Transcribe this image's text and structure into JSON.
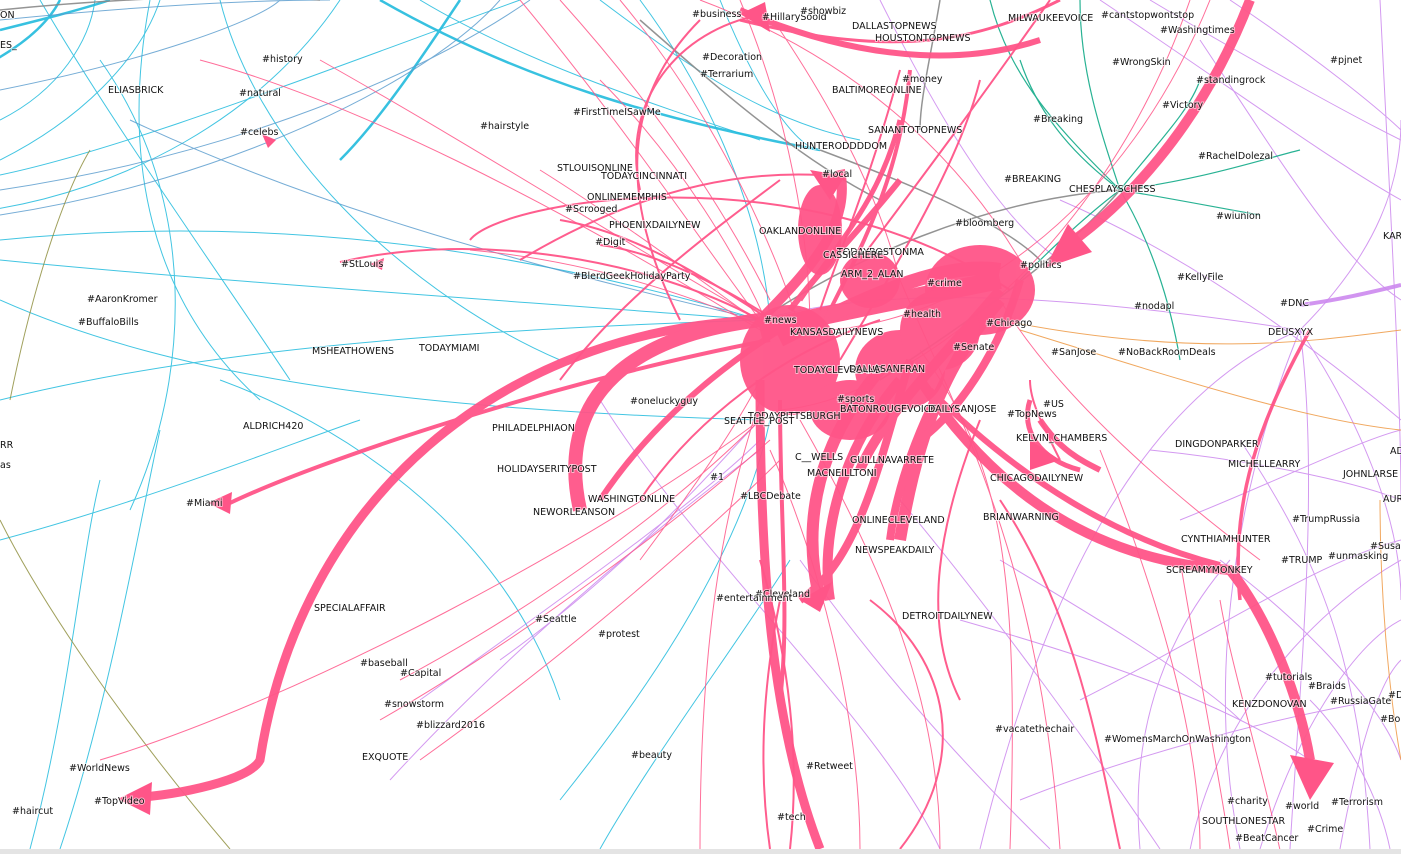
{
  "colors": {
    "pink": "#ff5588",
    "cyan": "#22bbdd",
    "blue": "#5599cc",
    "violet": "#cc88ee",
    "green": "#11aa88",
    "gray": "#888888",
    "orange": "#ee9944",
    "olive": "#888833",
    "label": "#111111"
  },
  "nodes": [
    {
      "label": "ON"
    },
    {
      "label": "ES_"
    },
    {
      "label": "ELIASBRICK"
    },
    {
      "label": "#history"
    },
    {
      "label": "#natural"
    },
    {
      "label": "#celebs"
    },
    {
      "label": "#hairstyle"
    },
    {
      "label": "#business"
    },
    {
      "label": "#HillarySoold"
    },
    {
      "label": "#showbiz"
    },
    {
      "label": "DALLASTOPNEWS"
    },
    {
      "label": "HOUSTONTOPNEWS"
    },
    {
      "label": "MILWAUKEEVOICE"
    },
    {
      "label": "#cantstopwontstop"
    },
    {
      "label": "#Washingtimes"
    },
    {
      "label": "#WrongSkin"
    },
    {
      "label": "#pjnet"
    },
    {
      "label": "#Decoration"
    },
    {
      "label": "#Terrarium"
    },
    {
      "label": "#money"
    },
    {
      "label": "BALTIMOREONLINE"
    },
    {
      "label": "#standingrock"
    },
    {
      "label": "#Victory"
    },
    {
      "label": "#FirstTimeISawMe"
    },
    {
      "label": "SANANTOTOPNEWS"
    },
    {
      "label": "#Breaking"
    },
    {
      "label": "HUNTERODDDDOM"
    },
    {
      "label": "#RachelDolezal"
    },
    {
      "label": "STLOUISONLINE"
    },
    {
      "label": "TODAYCINCINNATI"
    },
    {
      "label": "#local"
    },
    {
      "label": "#BREAKING"
    },
    {
      "label": "CHESPLAYSCHESS"
    },
    {
      "label": "ONLINEMEMPHIS"
    },
    {
      "label": "#Scrooged"
    },
    {
      "label": "#wiunion"
    },
    {
      "label": "PHOENIXDAILYNEW"
    },
    {
      "label": "#bloomberg"
    },
    {
      "label": "OAKLANDONLINE"
    },
    {
      "label": "KAR"
    },
    {
      "label": "#Digit"
    },
    {
      "label": "TODAYBOSTONMA"
    },
    {
      "label": "CASSICHERE"
    },
    {
      "label": "#politics"
    },
    {
      "label": "#StLouis"
    },
    {
      "label": "ARM_2_ALAN"
    },
    {
      "label": "#BlerdGeekHolidayParty"
    },
    {
      "label": "#KellyFile"
    },
    {
      "label": "#crime"
    },
    {
      "label": "#AaronKromer"
    },
    {
      "label": "#DNC"
    },
    {
      "label": "#nodapl"
    },
    {
      "label": "#BuffaloBills"
    },
    {
      "label": "#news"
    },
    {
      "label": "#health"
    },
    {
      "label": "#Chicago"
    },
    {
      "label": "KANSASDAILYNEWS"
    },
    {
      "label": "DEUSXYX"
    },
    {
      "label": "TODAYMIAMI"
    },
    {
      "label": "MSHEATHOWENS"
    },
    {
      "label": "#Senate"
    },
    {
      "label": "#SanJose"
    },
    {
      "label": "#NoBackRoomDeals"
    },
    {
      "label": "TODAYCLEVELAND"
    },
    {
      "label": "DALLASANFRAN"
    },
    {
      "label": "#US"
    },
    {
      "label": "#oneluckyguy"
    },
    {
      "label": "#sports"
    },
    {
      "label": "BATONROUGEVOICE"
    },
    {
      "label": "DAILYSANJOSE"
    },
    {
      "label": "#TopNews"
    },
    {
      "label": "TODAYPITTSBURGH"
    },
    {
      "label": "SEATTLE_POST"
    },
    {
      "label": "RR"
    },
    {
      "label": "ALDRICH420"
    },
    {
      "label": "PHILADELPHIAON"
    },
    {
      "label": "KELVIN_CHAMBERS"
    },
    {
      "label": "DINGDONPARKER"
    },
    {
      "label": "AD"
    },
    {
      "label": "as"
    },
    {
      "label": "C__WELLS"
    },
    {
      "label": "GUILLNAVARRETE"
    },
    {
      "label": "MICHELLEARRY"
    },
    {
      "label": "HOLIDAYSERITYPOST"
    },
    {
      "label": "MACNEILLTONI"
    },
    {
      "label": "JOHNLARSE"
    },
    {
      "label": "#1"
    },
    {
      "label": "CHICAGODAILYNEW"
    },
    {
      "label": "WASHINGTONLINE"
    },
    {
      "label": "#LBCDebate"
    },
    {
      "label": "AUR"
    },
    {
      "label": "#Miami"
    },
    {
      "label": "NEWORLEANSON"
    },
    {
      "label": "ONLINECLEVELAND"
    },
    {
      "label": "BRIANWARNING"
    },
    {
      "label": "#TrumpRussia"
    },
    {
      "label": "CYNTHIAMHUNTER"
    },
    {
      "label": "#Susan"
    },
    {
      "label": "NEWSPEAKDAILY"
    },
    {
      "label": "#TRUMP"
    },
    {
      "label": "#unmasking"
    },
    {
      "label": "SCREAMYMONKEY"
    },
    {
      "label": "#Cleveland"
    },
    {
      "label": "#entertainment"
    },
    {
      "label": "SPECIALAFFAIR"
    },
    {
      "label": "DETROITDAILYNEW"
    },
    {
      "label": "#Seattle"
    },
    {
      "label": "#protest"
    },
    {
      "label": "#baseball"
    },
    {
      "label": "#Capital"
    },
    {
      "label": "#tutorials"
    },
    {
      "label": "#Braids"
    },
    {
      "label": "#DI"
    },
    {
      "label": "#RussiaGate"
    },
    {
      "label": "#snowstorm"
    },
    {
      "label": "KENZDONOVAN"
    },
    {
      "label": "#blizzard2016"
    },
    {
      "label": "#Boul"
    },
    {
      "label": "#vacatethechair"
    },
    {
      "label": "#WomensMarchOnWashington"
    },
    {
      "label": "EXQUOTE"
    },
    {
      "label": "#beauty"
    },
    {
      "label": "#WorldNews"
    },
    {
      "label": "#Retweet"
    },
    {
      "label": "#TopVideo"
    },
    {
      "label": "#charity"
    },
    {
      "label": "#world"
    },
    {
      "label": "#Terrorism"
    },
    {
      "label": "#haircut"
    },
    {
      "label": "#tech"
    },
    {
      "label": "SOUTHLONESTAR"
    },
    {
      "label": "#Crime"
    },
    {
      "label": "#BeatCancer"
    }
  ]
}
